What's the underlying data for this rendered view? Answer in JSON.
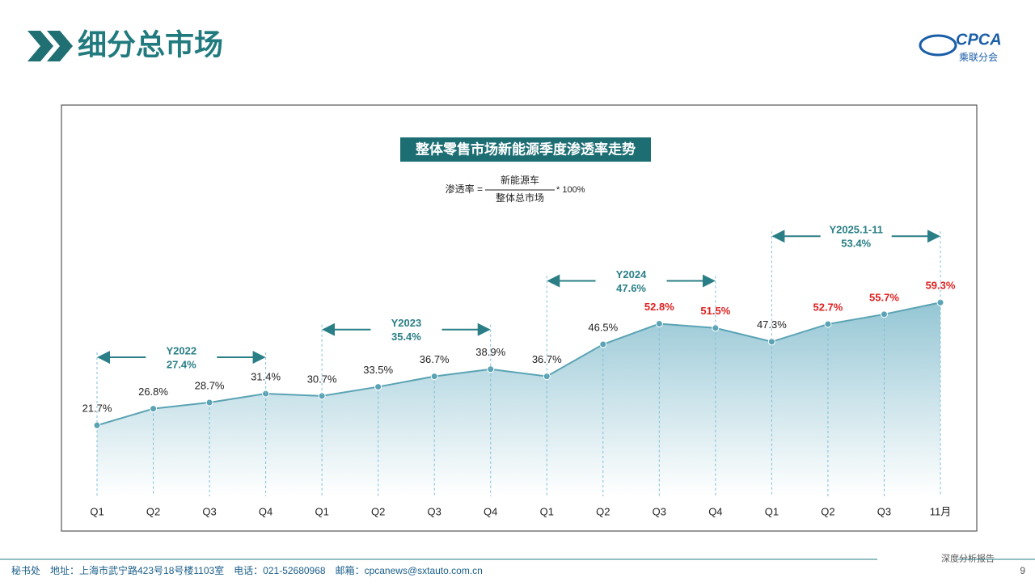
{
  "header": {
    "title": "细分总市场",
    "logo_text": "CPCA",
    "logo_subtext": "乘联分会"
  },
  "chart_data": {
    "type": "area",
    "title": "整体零售市场新能源季度渗透率走势",
    "formula": {
      "lhs": "渗透率 =",
      "numerator": "新能源车",
      "denominator": "整体总市场",
      "suffix": "* 100%"
    },
    "categories": [
      "Q1",
      "Q2",
      "Q3",
      "Q4",
      "Q1",
      "Q2",
      "Q3",
      "Q4",
      "Q1",
      "Q2",
      "Q3",
      "Q4",
      "Q1",
      "Q2",
      "Q3",
      "11月"
    ],
    "values": [
      21.7,
      26.8,
      28.7,
      31.4,
      30.7,
      33.5,
      36.7,
      38.9,
      36.7,
      46.5,
      52.8,
      51.5,
      47.3,
      52.7,
      55.7,
      59.3
    ],
    "value_labels": [
      "21.7%",
      "26.8%",
      "28.7%",
      "31.4%",
      "30.7%",
      "33.5%",
      "36.7%",
      "38.9%",
      "36.7%",
      "46.5%",
      "52.8%",
      "51.5%",
      "47.3%",
      "52.7%",
      "55.7%",
      "59.3%"
    ],
    "value_label_colors": [
      "#222222",
      "#222222",
      "#222222",
      "#222222",
      "#222222",
      "#222222",
      "#222222",
      "#222222",
      "#222222",
      "#222222",
      "#e02020",
      "#e02020",
      "#222222",
      "#e02020",
      "#e02020",
      "#e02020"
    ],
    "color": "#5aa3b4",
    "ylim": [
      0,
      70
    ],
    "periods": [
      {
        "name": "Y2022",
        "text": "27.4%",
        "span": [
          0,
          3
        ]
      },
      {
        "name": "Y2023",
        "text": "35.4%",
        "span": [
          4,
          7
        ]
      },
      {
        "name": "Y2024",
        "text": "47.6%",
        "span": [
          8,
          11
        ]
      },
      {
        "name": "Y2025.1-11",
        "text": "53.4%",
        "span": [
          12,
          15
        ]
      }
    ]
  },
  "footer": {
    "contact": "秘书处　地址：上海市武宁路423号18号楼1103室　电话：021-52680968　邮箱：cpcanews@sxtauto.com.cn",
    "tag": "深度分析报告",
    "page": "9"
  }
}
